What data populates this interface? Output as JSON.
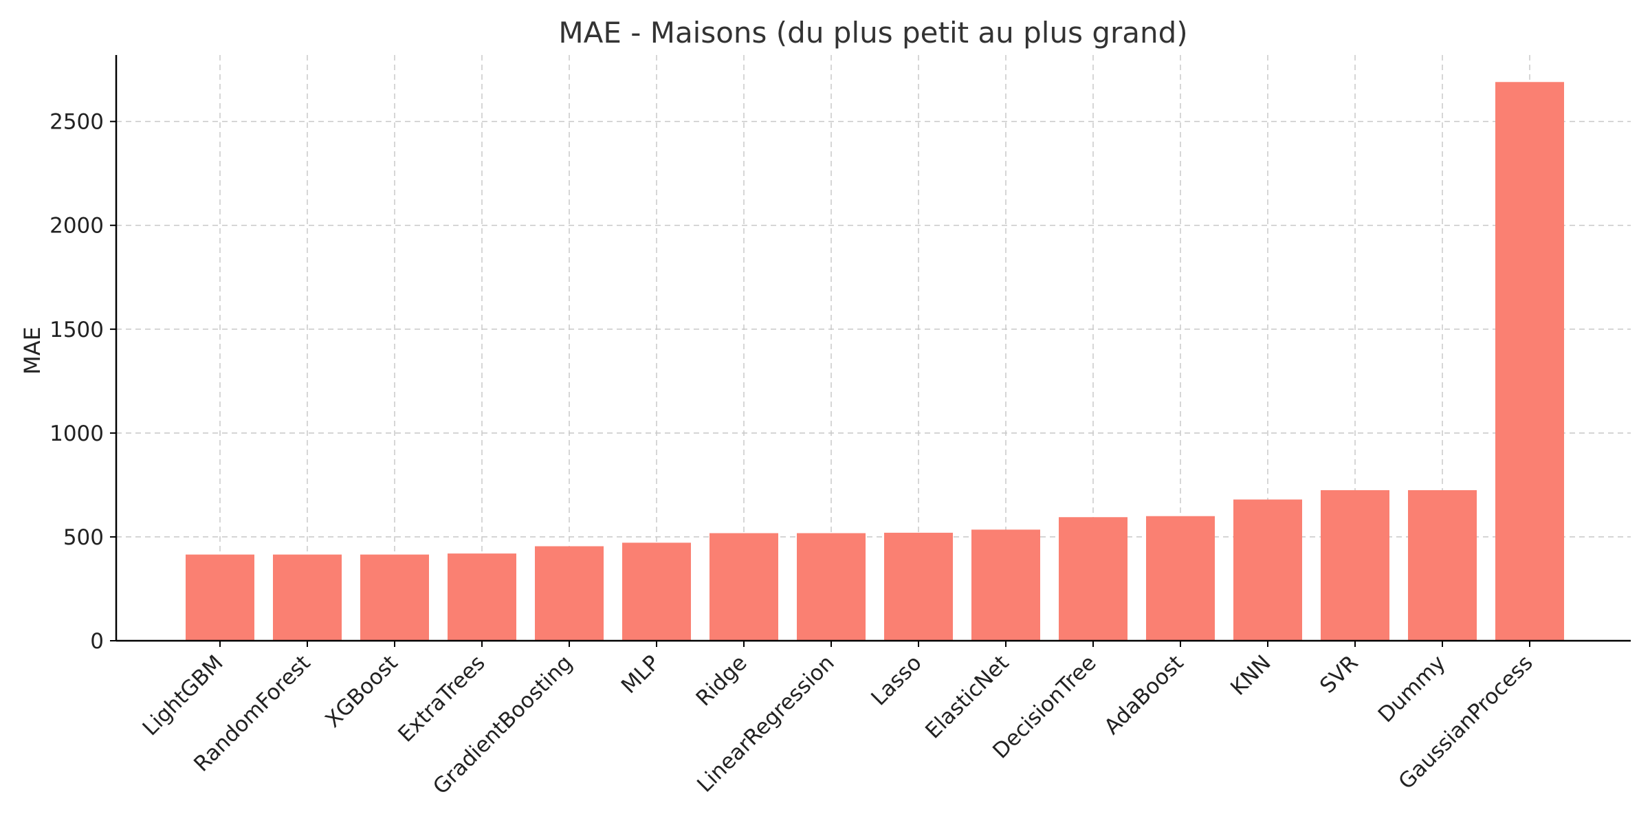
{
  "chart_data": {
    "type": "bar",
    "title": "MAE - Maisons (du plus petit au plus grand)",
    "xlabel": "",
    "ylabel": "MAE",
    "ylim": [
      0,
      2820
    ],
    "yticks": [
      0,
      500,
      1000,
      1500,
      2000,
      2500
    ],
    "grid": true,
    "bar_color": "#fa8072",
    "categories": [
      "LightGBM",
      "RandomForest",
      "XGBoost",
      "ExtraTrees",
      "GradientBoosting",
      "MLP",
      "Ridge",
      "LinearRegression",
      "Lasso",
      "ElasticNet",
      "DecisionTree",
      "AdaBoost",
      "KNN",
      "SVR",
      "Dummy",
      "GaussianProcess"
    ],
    "values": [
      415,
      415,
      415,
      420,
      455,
      472,
      518,
      518,
      520,
      535,
      595,
      600,
      680,
      725,
      725,
      2690
    ]
  }
}
